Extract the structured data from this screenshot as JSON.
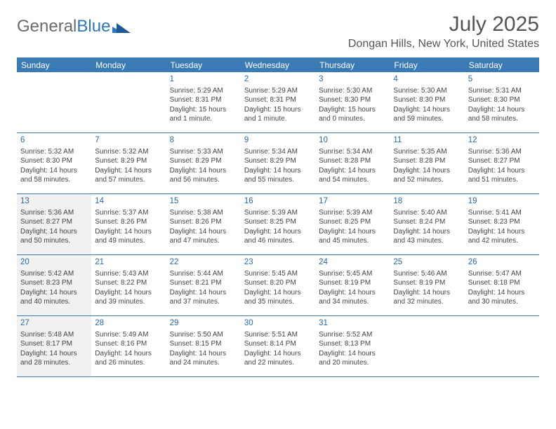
{
  "brand": {
    "part1": "General",
    "part2": "Blue"
  },
  "title": "July 2025",
  "location": "Dongan Hills, New York, United States",
  "colors": {
    "header_bg": "#3a7bb5",
    "accent": "#2a78bd",
    "shaded_bg": "#f1f1f1",
    "text": "#444444"
  },
  "weekdays": [
    "Sunday",
    "Monday",
    "Tuesday",
    "Wednesday",
    "Thursday",
    "Friday",
    "Saturday"
  ],
  "weeks": [
    [
      {
        "n": "",
        "lines": []
      },
      {
        "n": "",
        "lines": []
      },
      {
        "n": "1",
        "lines": [
          "Sunrise: 5:29 AM",
          "Sunset: 8:31 PM",
          "Daylight: 15 hours",
          "and 1 minute."
        ]
      },
      {
        "n": "2",
        "lines": [
          "Sunrise: 5:29 AM",
          "Sunset: 8:31 PM",
          "Daylight: 15 hours",
          "and 1 minute."
        ]
      },
      {
        "n": "3",
        "lines": [
          "Sunrise: 5:30 AM",
          "Sunset: 8:30 PM",
          "Daylight: 15 hours",
          "and 0 minutes."
        ]
      },
      {
        "n": "4",
        "lines": [
          "Sunrise: 5:30 AM",
          "Sunset: 8:30 PM",
          "Daylight: 14 hours",
          "and 59 minutes."
        ]
      },
      {
        "n": "5",
        "lines": [
          "Sunrise: 5:31 AM",
          "Sunset: 8:30 PM",
          "Daylight: 14 hours",
          "and 58 minutes."
        ]
      }
    ],
    [
      {
        "n": "6",
        "lines": [
          "Sunrise: 5:32 AM",
          "Sunset: 8:30 PM",
          "Daylight: 14 hours",
          "and 58 minutes."
        ]
      },
      {
        "n": "7",
        "lines": [
          "Sunrise: 5:32 AM",
          "Sunset: 8:29 PM",
          "Daylight: 14 hours",
          "and 57 minutes."
        ]
      },
      {
        "n": "8",
        "lines": [
          "Sunrise: 5:33 AM",
          "Sunset: 8:29 PM",
          "Daylight: 14 hours",
          "and 56 minutes."
        ]
      },
      {
        "n": "9",
        "lines": [
          "Sunrise: 5:34 AM",
          "Sunset: 8:29 PM",
          "Daylight: 14 hours",
          "and 55 minutes."
        ]
      },
      {
        "n": "10",
        "lines": [
          "Sunrise: 5:34 AM",
          "Sunset: 8:28 PM",
          "Daylight: 14 hours",
          "and 54 minutes."
        ]
      },
      {
        "n": "11",
        "lines": [
          "Sunrise: 5:35 AM",
          "Sunset: 8:28 PM",
          "Daylight: 14 hours",
          "and 52 minutes."
        ]
      },
      {
        "n": "12",
        "lines": [
          "Sunrise: 5:36 AM",
          "Sunset: 8:27 PM",
          "Daylight: 14 hours",
          "and 51 minutes."
        ]
      }
    ],
    [
      {
        "n": "13",
        "lines": [
          "Sunrise: 5:36 AM",
          "Sunset: 8:27 PM",
          "Daylight: 14 hours",
          "and 50 minutes."
        ],
        "s": true
      },
      {
        "n": "14",
        "lines": [
          "Sunrise: 5:37 AM",
          "Sunset: 8:26 PM",
          "Daylight: 14 hours",
          "and 49 minutes."
        ]
      },
      {
        "n": "15",
        "lines": [
          "Sunrise: 5:38 AM",
          "Sunset: 8:26 PM",
          "Daylight: 14 hours",
          "and 47 minutes."
        ]
      },
      {
        "n": "16",
        "lines": [
          "Sunrise: 5:39 AM",
          "Sunset: 8:25 PM",
          "Daylight: 14 hours",
          "and 46 minutes."
        ]
      },
      {
        "n": "17",
        "lines": [
          "Sunrise: 5:39 AM",
          "Sunset: 8:25 PM",
          "Daylight: 14 hours",
          "and 45 minutes."
        ]
      },
      {
        "n": "18",
        "lines": [
          "Sunrise: 5:40 AM",
          "Sunset: 8:24 PM",
          "Daylight: 14 hours",
          "and 43 minutes."
        ]
      },
      {
        "n": "19",
        "lines": [
          "Sunrise: 5:41 AM",
          "Sunset: 8:23 PM",
          "Daylight: 14 hours",
          "and 42 minutes."
        ]
      }
    ],
    [
      {
        "n": "20",
        "lines": [
          "Sunrise: 5:42 AM",
          "Sunset: 8:23 PM",
          "Daylight: 14 hours",
          "and 40 minutes."
        ],
        "s": true
      },
      {
        "n": "21",
        "lines": [
          "Sunrise: 5:43 AM",
          "Sunset: 8:22 PM",
          "Daylight: 14 hours",
          "and 39 minutes."
        ]
      },
      {
        "n": "22",
        "lines": [
          "Sunrise: 5:44 AM",
          "Sunset: 8:21 PM",
          "Daylight: 14 hours",
          "and 37 minutes."
        ]
      },
      {
        "n": "23",
        "lines": [
          "Sunrise: 5:45 AM",
          "Sunset: 8:20 PM",
          "Daylight: 14 hours",
          "and 35 minutes."
        ]
      },
      {
        "n": "24",
        "lines": [
          "Sunrise: 5:45 AM",
          "Sunset: 8:19 PM",
          "Daylight: 14 hours",
          "and 34 minutes."
        ]
      },
      {
        "n": "25",
        "lines": [
          "Sunrise: 5:46 AM",
          "Sunset: 8:19 PM",
          "Daylight: 14 hours",
          "and 32 minutes."
        ]
      },
      {
        "n": "26",
        "lines": [
          "Sunrise: 5:47 AM",
          "Sunset: 8:18 PM",
          "Daylight: 14 hours",
          "and 30 minutes."
        ]
      }
    ],
    [
      {
        "n": "27",
        "lines": [
          "Sunrise: 5:48 AM",
          "Sunset: 8:17 PM",
          "Daylight: 14 hours",
          "and 28 minutes."
        ],
        "s": true
      },
      {
        "n": "28",
        "lines": [
          "Sunrise: 5:49 AM",
          "Sunset: 8:16 PM",
          "Daylight: 14 hours",
          "and 26 minutes."
        ]
      },
      {
        "n": "29",
        "lines": [
          "Sunrise: 5:50 AM",
          "Sunset: 8:15 PM",
          "Daylight: 14 hours",
          "and 24 minutes."
        ]
      },
      {
        "n": "30",
        "lines": [
          "Sunrise: 5:51 AM",
          "Sunset: 8:14 PM",
          "Daylight: 14 hours",
          "and 22 minutes."
        ]
      },
      {
        "n": "31",
        "lines": [
          "Sunrise: 5:52 AM",
          "Sunset: 8:13 PM",
          "Daylight: 14 hours",
          "and 20 minutes."
        ]
      },
      {
        "n": "",
        "lines": []
      },
      {
        "n": "",
        "lines": []
      }
    ]
  ]
}
